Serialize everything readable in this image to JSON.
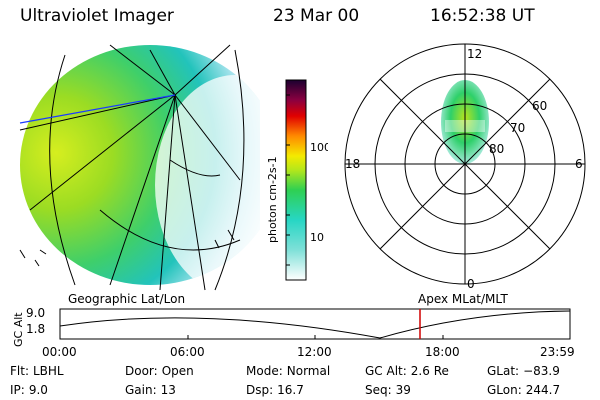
{
  "header": {
    "title": "Ultraviolet Imager",
    "date": "23 Mar 00",
    "time": "16:52:38 UT"
  },
  "colorbar": {
    "unit_label": "photon cm-2s-1",
    "ticks": [
      "100",
      "10"
    ]
  },
  "polar_plot": {
    "mlt_labels": [
      "12",
      "18",
      "6",
      "0"
    ],
    "lat_labels": [
      "60",
      "70",
      "80"
    ]
  },
  "coord_labels": {
    "left": "Geographic Lat/Lon",
    "right": "Apex MLat/MLT"
  },
  "timeline": {
    "axis_label": "GC Alt",
    "y_ticks": [
      "9.0",
      "1.8"
    ],
    "x_ticks": [
      "00:00",
      "06:00",
      "12:00",
      "18:00",
      "23:59"
    ],
    "marker_color": "#d00000"
  },
  "footer": {
    "flt_label": "Flt:",
    "flt_value": "LBHL",
    "ip_label": "IP:",
    "ip_value": "9.0",
    "door_label": "Door:",
    "door_value": "Open",
    "gain_label": "Gain:",
    "gain_value": "13",
    "mode_label": "Mode:",
    "mode_value": "Normal",
    "dsp_label": "Dsp:",
    "dsp_value": "16.7",
    "gcalt_label": "GC Alt:",
    "gcalt_value": "2.6 Re",
    "seq_label": "Seq:",
    "seq_value": "39",
    "glat_label": "GLat:",
    "glat_value": "−83.9",
    "glon_label": "GLon:",
    "glon_value": "244.7"
  }
}
